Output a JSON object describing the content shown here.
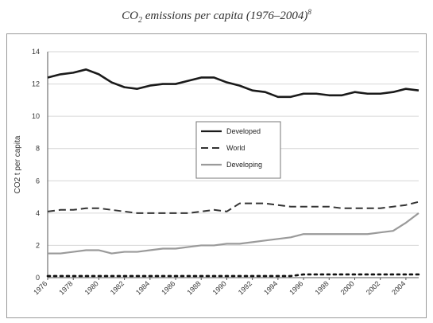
{
  "title": {
    "main": "CO",
    "sub": "2",
    "rest": " emissions per capita (1976–2004)",
    "footnote_mark": "8"
  },
  "chart_data": {
    "type": "line",
    "title": "CO2 emissions per capita (1976–2004)",
    "xlabel": "",
    "ylabel": "CO2 t per capita",
    "ylim": [
      0,
      14
    ],
    "y_ticks": [
      0,
      2,
      4,
      6,
      8,
      10,
      12,
      14
    ],
    "x_ticks": [
      "1976",
      "1978",
      "1980",
      "1982",
      "1984",
      "1986",
      "1988",
      "1990",
      "1992",
      "1994",
      "1996",
      "1998",
      "2000",
      "2002",
      "2004"
    ],
    "x": [
      1976,
      1977,
      1978,
      1979,
      1980,
      1981,
      1982,
      1983,
      1984,
      1985,
      1986,
      1987,
      1988,
      1989,
      1990,
      1991,
      1992,
      1993,
      1994,
      1995,
      1996,
      1997,
      1998,
      1999,
      2000,
      2001,
      2002,
      2003,
      2004,
      2005
    ],
    "grid": true,
    "legend_position": "center",
    "series": [
      {
        "name": "Developed",
        "style": "solid",
        "color": "#1a1a1a",
        "values": [
          12.4,
          12.6,
          12.7,
          12.9,
          12.6,
          12.1,
          11.8,
          11.7,
          11.9,
          12.0,
          12.0,
          12.2,
          12.4,
          12.4,
          12.1,
          11.9,
          11.6,
          11.5,
          11.2,
          11.2,
          11.4,
          11.4,
          11.3,
          11.3,
          11.5,
          11.4,
          11.4,
          11.5,
          11.7,
          11.6
        ]
      },
      {
        "name": "World",
        "style": "dashed",
        "color": "#333333",
        "values": [
          4.1,
          4.2,
          4.2,
          4.3,
          4.3,
          4.2,
          4.1,
          4.0,
          4.0,
          4.0,
          4.0,
          4.0,
          4.1,
          4.2,
          4.1,
          4.6,
          4.6,
          4.6,
          4.5,
          4.4,
          4.4,
          4.4,
          4.4,
          4.3,
          4.3,
          4.3,
          4.3,
          4.4,
          4.5,
          4.7
        ]
      },
      {
        "name": "Developing",
        "style": "solid",
        "color": "#9a9a9a",
        "values": [
          1.5,
          1.5,
          1.6,
          1.7,
          1.7,
          1.5,
          1.6,
          1.6,
          1.7,
          1.8,
          1.8,
          1.9,
          2.0,
          2.0,
          2.1,
          2.1,
          2.2,
          2.3,
          2.4,
          2.5,
          2.7,
          2.7,
          2.7,
          2.7,
          2.7,
          2.7,
          2.8,
          2.9,
          3.4,
          4.0
        ]
      },
      {
        "name": "",
        "style": "dotted",
        "color": "#111111",
        "values": [
          0.1,
          0.1,
          0.1,
          0.1,
          0.1,
          0.1,
          0.1,
          0.1,
          0.1,
          0.1,
          0.1,
          0.1,
          0.1,
          0.1,
          0.1,
          0.1,
          0.1,
          0.1,
          0.1,
          0.1,
          0.2,
          0.2,
          0.2,
          0.2,
          0.2,
          0.2,
          0.2,
          0.2,
          0.2,
          0.2
        ]
      }
    ]
  }
}
